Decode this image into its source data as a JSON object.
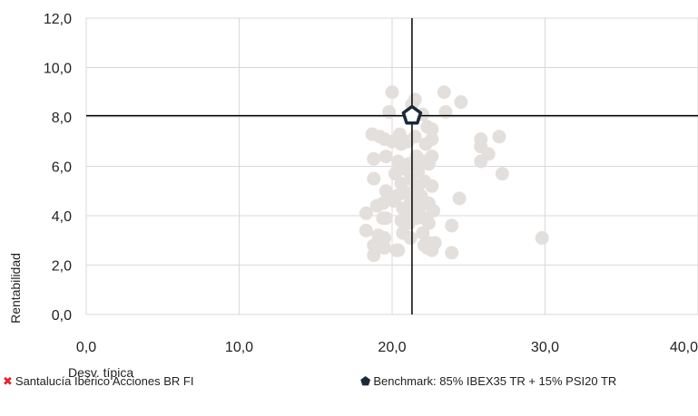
{
  "chart_data": {
    "type": "scatter",
    "title": "",
    "xlabel": "Desv. típica",
    "ylabel": "Rentabilidad",
    "xlim": [
      0,
      40
    ],
    "ylim": [
      0,
      12
    ],
    "x_ticks": [
      "0,0",
      "10,0",
      "20,0",
      "30,0",
      "40,0"
    ],
    "y_ticks": [
      "0,0",
      "2,0",
      "4,0",
      "6,0",
      "8,0",
      "10,0",
      "12,0"
    ],
    "grid": true,
    "reference_lines": {
      "x": 21.3,
      "y": 8.05
    },
    "colors": {
      "peers": "#e3dfdd",
      "benchmark": "#1b2a3a",
      "fund": "#e8202a",
      "axis": "#000000",
      "grid": "#d9d9d9"
    },
    "series": [
      {
        "role": "peers",
        "x": [
          20.0,
          21.5,
          23.4,
          24.5,
          19.8,
          21.3,
          22.0,
          23.5,
          19.2,
          20.5,
          22.3,
          22.6,
          18.7,
          19.5,
          20.0,
          20.6,
          21.0,
          21.5,
          22.2,
          22.6,
          18.8,
          19.6,
          20.4,
          21.1,
          21.6,
          22.1,
          22.6,
          20.2,
          20.8,
          21.3,
          21.7,
          22.4,
          18.8,
          20.6,
          21.2,
          21.7,
          22.1,
          19.6,
          20.3,
          20.9,
          21.4,
          21.9,
          22.6,
          19.4,
          20.1,
          20.7,
          21.2,
          21.9,
          22.4,
          19.0,
          19.6,
          21.0,
          21.5,
          22.1,
          22.7,
          18.3,
          19.4,
          20.6,
          21.1,
          21.6,
          22.4,
          23.9,
          18.3,
          19.1,
          20.7,
          21.2,
          22.0,
          18.8,
          19.5,
          20.4,
          22.1,
          22.6,
          18.8,
          19.5,
          20.3,
          22.4,
          23.9,
          25.8,
          27.0,
          25.8,
          26.3,
          25.8,
          27.2,
          24.4,
          29.8,
          22.3,
          22.8
        ],
        "y": [
          9.0,
          8.7,
          9.0,
          8.6,
          8.2,
          8.5,
          8.1,
          8.2,
          7.2,
          7.3,
          7.6,
          7.5,
          7.3,
          7.1,
          7.0,
          6.9,
          7.0,
          7.2,
          6.9,
          7.1,
          6.3,
          6.4,
          6.2,
          6.1,
          6.4,
          6.2,
          6.4,
          5.7,
          5.9,
          6.1,
          5.8,
          6.1,
          5.5,
          5.3,
          5.5,
          5.2,
          5.4,
          5.0,
          4.8,
          4.9,
          5.0,
          4.8,
          5.2,
          4.5,
          4.6,
          4.3,
          4.5,
          4.4,
          4.5,
          4.4,
          3.9,
          4.2,
          4.1,
          3.9,
          4.2,
          4.1,
          3.9,
          3.8,
          3.7,
          3.9,
          3.7,
          3.6,
          3.4,
          3.2,
          3.3,
          3.1,
          3.3,
          2.8,
          2.7,
          2.6,
          2.8,
          2.6,
          2.4,
          3.1,
          2.6,
          2.9,
          2.5,
          7.1,
          7.2,
          6.8,
          6.5,
          6.2,
          5.7,
          4.7,
          3.1,
          2.7,
          2.9
        ]
      },
      {
        "role": "benchmark",
        "name": "Benchmark: 85% IBEX35 TR + 15% PSI20 TR",
        "x": [
          21.3
        ],
        "y": [
          8.05
        ]
      },
      {
        "role": "fund",
        "name": "Santalucía Ibérico Acciones BR FI",
        "x": [],
        "y": []
      }
    ]
  },
  "legend": {
    "fund_label": "Santalucía Ibérico Acciones BR FI",
    "fund_icon": "red-x-icon",
    "benchmark_label": "Benchmark: 85% IBEX35 TR + 15% PSI20 TR",
    "benchmark_icon": "pentagon-icon"
  }
}
